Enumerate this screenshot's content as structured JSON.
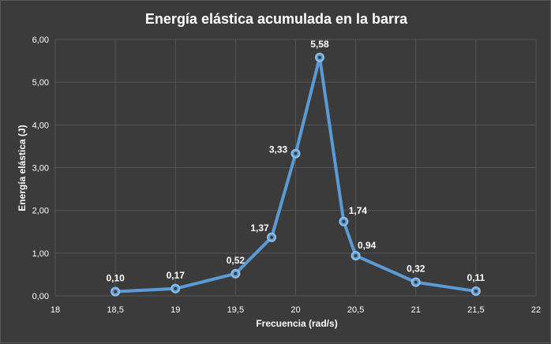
{
  "chart_data": {
    "type": "scatter",
    "title": "Energía elástica acumulada en la barra",
    "xlabel": "Frecuencia (rad/s)",
    "ylabel": "Energía elástica (J)",
    "xlim": [
      18,
      22
    ],
    "ylim": [
      0,
      6
    ],
    "x_ticks": [
      "18",
      "18,5",
      "19",
      "19,5",
      "20",
      "20,5",
      "21",
      "21,5",
      "22"
    ],
    "y_ticks": [
      "0,00",
      "1,00",
      "2,00",
      "3,00",
      "4,00",
      "5,00",
      "6,00"
    ],
    "grid": true,
    "legend": "none",
    "line_color": "#5b9bd5",
    "series": [
      {
        "x": [
          18.5,
          19,
          19.5,
          19.8,
          20,
          20.2,
          20.4,
          20.5,
          21,
          21.5
        ],
        "values": [
          0.1,
          0.17,
          0.52,
          1.37,
          3.33,
          5.58,
          1.74,
          0.94,
          0.32,
          0.11
        ],
        "data_labels": [
          "0,10",
          "0,17",
          "0,52",
          "1,37",
          "3,33",
          "5,58",
          "1,74",
          "0,94",
          "0,32",
          "0,11"
        ]
      }
    ]
  }
}
